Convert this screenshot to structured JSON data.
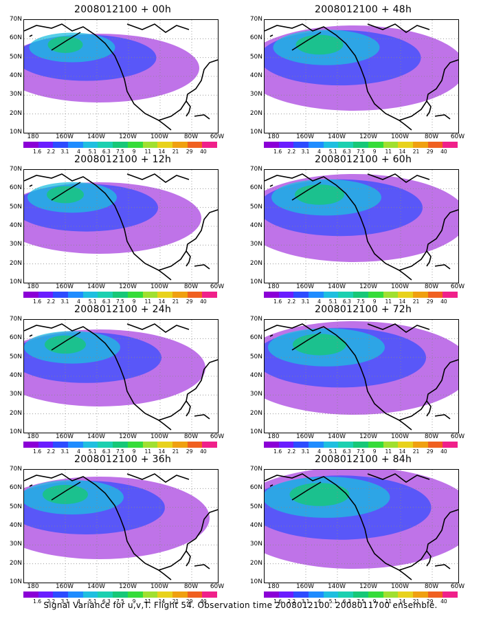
{
  "panels": [
    {
      "title": "2008012100 + 00h",
      "intensity": 0.25
    },
    {
      "title": "2008012100 + 48h",
      "intensity": 0.55
    },
    {
      "title": "2008012100 + 12h",
      "intensity": 0.3
    },
    {
      "title": "2008012100 + 60h",
      "intensity": 0.6
    },
    {
      "title": "2008012100 + 24h",
      "intensity": 0.4
    },
    {
      "title": "2008012100 + 72h",
      "intensity": 0.7
    },
    {
      "title": "2008012100 + 36h",
      "intensity": 0.5
    },
    {
      "title": "2008012100 + 84h",
      "intensity": 0.85
    }
  ],
  "y_labels": [
    "70N",
    "60N",
    "50N",
    "40N",
    "30N",
    "20N",
    "10N"
  ],
  "x_labels": [
    "180",
    "160W",
    "140W",
    "120W",
    "100W",
    "80W",
    "60W"
  ],
  "colorbar": {
    "labels": [
      "1.6",
      "2.2",
      "3.1",
      "4",
      "5.1",
      "6.3",
      "7.5",
      "9",
      "11",
      "14",
      "21",
      "29",
      "40"
    ],
    "colors": [
      "#8b00d6",
      "#6a1dff",
      "#2d4cff",
      "#1f8cff",
      "#1fbfe0",
      "#1cd0b0",
      "#17c878",
      "#36dc3a",
      "#a0e030",
      "#e8d21c",
      "#f0a010",
      "#f06020",
      "#f0208a"
    ]
  },
  "caption": "Signal Variance for u,v,T. Flight 54. Observation time 2008012100. 2008011700 ensemble."
}
